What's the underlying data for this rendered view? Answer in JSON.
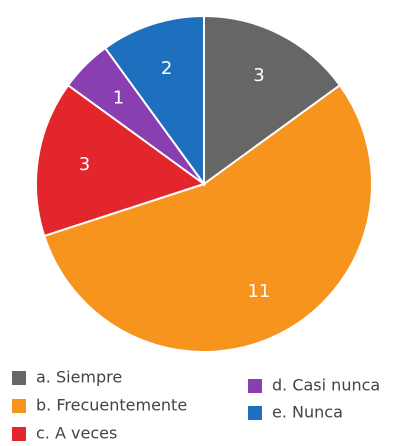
{
  "chart_data": {
    "type": "pie",
    "categories": [
      "a. Siempre",
      "b. Frecuentemente",
      "c. A veces",
      "d. Casi nunca",
      "e. Nunca"
    ],
    "values": [
      3,
      11,
      3,
      1,
      2
    ],
    "colors": [
      "#666666",
      "#f7941d",
      "#e3262b",
      "#8a3fb0",
      "#1f6fbf"
    ],
    "legend": "bottom"
  }
}
